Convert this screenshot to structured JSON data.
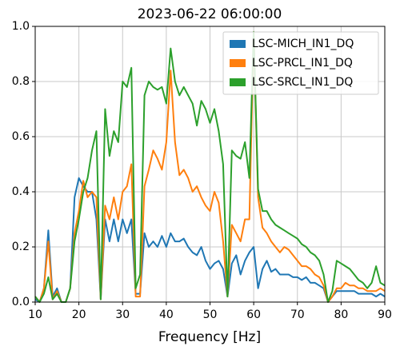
{
  "chart_data": {
    "type": "line",
    "title": "2023-06-22 06:00:00",
    "xlabel": "Frequency [Hz]",
    "x": [
      10,
      11,
      12,
      13,
      14,
      15,
      16,
      17,
      18,
      19,
      20,
      21,
      22,
      23,
      24,
      25,
      26,
      27,
      28,
      29,
      30,
      31,
      32,
      33,
      34,
      35,
      36,
      37,
      38,
      39,
      40,
      41,
      42,
      43,
      44,
      45,
      46,
      47,
      48,
      49,
      50,
      51,
      52,
      53,
      54,
      55,
      56,
      57,
      58,
      59,
      60,
      61,
      62,
      63,
      64,
      65,
      66,
      67,
      68,
      69,
      70,
      71,
      72,
      73,
      74,
      75,
      76,
      77,
      78,
      79,
      80,
      81,
      82,
      83,
      84,
      85,
      86,
      87,
      88,
      89,
      90
    ],
    "series": [
      {
        "name": "LSC-MICH_IN1_DQ",
        "color": "#1f77b4",
        "values": [
          0.01,
          0.0,
          0.05,
          0.26,
          0.02,
          0.05,
          0,
          0,
          0.05,
          0.38,
          0.45,
          0.42,
          0.4,
          0.4,
          0.3,
          0.01,
          0.3,
          0.22,
          0.3,
          0.22,
          0.3,
          0.25,
          0.3,
          0.03,
          0.03,
          0.25,
          0.2,
          0.22,
          0.2,
          0.24,
          0.2,
          0.25,
          0.22,
          0.22,
          0.23,
          0.2,
          0.18,
          0.17,
          0.2,
          0.15,
          0.12,
          0.14,
          0.15,
          0.12,
          0.02,
          0.14,
          0.17,
          0.1,
          0.15,
          0.18,
          0.2,
          0.05,
          0.12,
          0.15,
          0.11,
          0.12,
          0.1,
          0.1,
          0.1,
          0.09,
          0.09,
          0.08,
          0.09,
          0.07,
          0.07,
          0.06,
          0.05,
          0.0,
          0.02,
          0.04,
          0.04,
          0.04,
          0.04,
          0.04,
          0.03,
          0.03,
          0.03,
          0.03,
          0.02,
          0.03,
          0.02
        ]
      },
      {
        "name": "LSC-PRCL_IN1_DQ",
        "color": "#ff7f0e",
        "values": [
          0.02,
          0.0,
          0.05,
          0.22,
          0.01,
          0.04,
          0,
          0,
          0.05,
          0.25,
          0.33,
          0.44,
          0.38,
          0.4,
          0.38,
          0.01,
          0.35,
          0.3,
          0.38,
          0.3,
          0.4,
          0.42,
          0.5,
          0.02,
          0.02,
          0.42,
          0.48,
          0.55,
          0.52,
          0.48,
          0.58,
          0.84,
          0.58,
          0.46,
          0.48,
          0.45,
          0.4,
          0.42,
          0.38,
          0.35,
          0.33,
          0.4,
          0.36,
          0.22,
          0.02,
          0.28,
          0.25,
          0.22,
          0.3,
          0.3,
          0.98,
          0.38,
          0.27,
          0.25,
          0.22,
          0.2,
          0.18,
          0.2,
          0.19,
          0.17,
          0.15,
          0.13,
          0.13,
          0.12,
          0.1,
          0.09,
          0.06,
          0.0,
          0.02,
          0.05,
          0.05,
          0.07,
          0.06,
          0.06,
          0.05,
          0.05,
          0.04,
          0.04,
          0.04,
          0.05,
          0.04
        ]
      },
      {
        "name": "LSC-SRCL_IN1_DQ",
        "color": "#2ca02c",
        "values": [
          0.02,
          0.0,
          0.03,
          0.09,
          0.01,
          0.03,
          0,
          0,
          0.05,
          0.22,
          0.3,
          0.4,
          0.45,
          0.55,
          0.62,
          0.01,
          0.7,
          0.53,
          0.62,
          0.58,
          0.8,
          0.78,
          0.85,
          0.05,
          0.1,
          0.75,
          0.8,
          0.78,
          0.77,
          0.78,
          0.72,
          0.92,
          0.8,
          0.75,
          0.78,
          0.75,
          0.72,
          0.64,
          0.73,
          0.7,
          0.65,
          0.7,
          0.62,
          0.5,
          0.02,
          0.55,
          0.53,
          0.52,
          0.58,
          0.45,
          0.98,
          0.41,
          0.33,
          0.33,
          0.3,
          0.28,
          0.27,
          0.26,
          0.25,
          0.24,
          0.23,
          0.21,
          0.2,
          0.18,
          0.17,
          0.15,
          0.1,
          0.0,
          0.04,
          0.15,
          0.14,
          0.13,
          0.12,
          0.1,
          0.08,
          0.07,
          0.05,
          0.07,
          0.13,
          0.07,
          0.06
        ]
      }
    ],
    "xlim": [
      10,
      90
    ],
    "xticks": [
      10,
      20,
      30,
      40,
      50,
      60,
      70,
      80,
      90
    ],
    "ylim": [
      0,
      1
    ],
    "yticks": [
      {
        "value": 0,
        "label": "0.0"
      },
      {
        "value": 0.2,
        "label": "0.2"
      },
      {
        "value": 0.4,
        "label": "0.4"
      },
      {
        "value": 0.6,
        "label": "0.6"
      },
      {
        "value": 0.8,
        "label": "0.8"
      },
      {
        "value": 1,
        "label": "1.0"
      }
    ],
    "grid": true,
    "legend": "upper right"
  }
}
